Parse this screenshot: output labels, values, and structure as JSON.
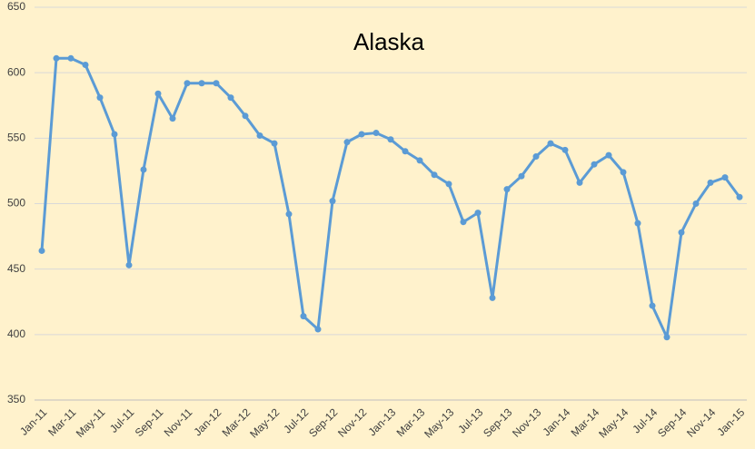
{
  "chart_data": {
    "type": "line",
    "title": "Alaska",
    "categories": [
      "Jan-11",
      null,
      "Mar-11",
      null,
      "May-11",
      null,
      "Jul-11",
      null,
      "Sep-11",
      null,
      "Nov-11",
      null,
      "Jan-12",
      null,
      "Mar-12",
      null,
      "May-12",
      null,
      "Jul-12",
      null,
      "Sep-12",
      null,
      "Nov-12",
      null,
      "Jan-13",
      null,
      "Mar-13",
      null,
      "May-13",
      null,
      "Jul-13",
      null,
      "Sep-13",
      null,
      "Nov-13",
      null,
      "Jan-14",
      null,
      "Mar-14",
      null,
      "May-14",
      null,
      "Jul-14",
      null,
      "Sep-14",
      null,
      "Nov-14",
      null,
      "Jan-15"
    ],
    "values": [
      464,
      611,
      611,
      606,
      581,
      553,
      453,
      526,
      584,
      565,
      592,
      592,
      592,
      581,
      567,
      552,
      546,
      492,
      414,
      404,
      502,
      547,
      553,
      554,
      549,
      540,
      533,
      522,
      515,
      486,
      493,
      428,
      511,
      521,
      536,
      546,
      541,
      516,
      530,
      537,
      524,
      485,
      422,
      398,
      478,
      500,
      516,
      520,
      505
    ],
    "color": "#5b9bd5",
    "ylim": [
      350,
      650
    ],
    "yticks": [
      350,
      400,
      450,
      500,
      550,
      600,
      650
    ],
    "grid": true
  }
}
